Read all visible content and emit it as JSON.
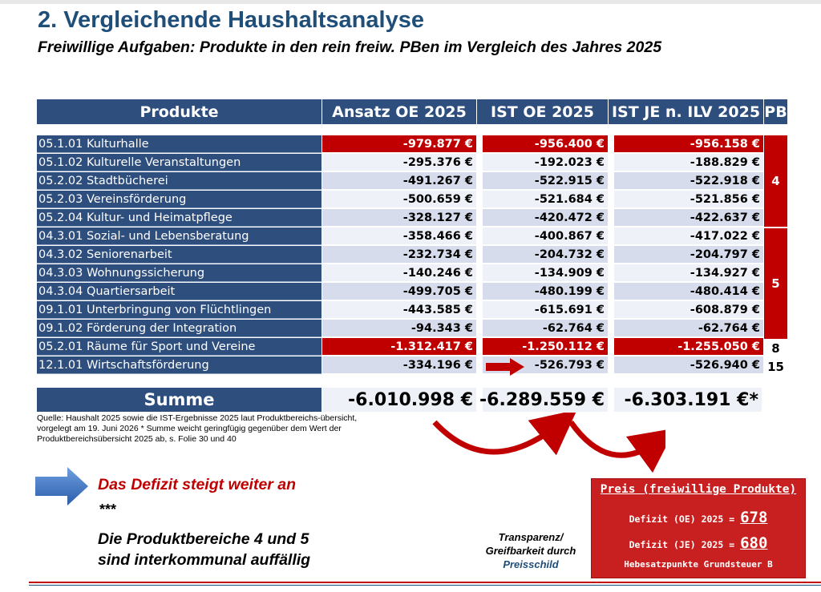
{
  "title": "2. Vergleichende Haushaltsanalyse",
  "subtitle": "Freiwillige Aufgaben: Produkte in den rein freiw. PBen im Vergleich des Jahres 2025",
  "table": {
    "headers": [
      "Produkte",
      "Ansatz OE 2025",
      "IST OE 2025",
      "IST JE n. ILV 2025",
      "PB"
    ],
    "rows": [
      {
        "name": "05.1.01 Kulturhalle",
        "ansatz": "-979.877 €",
        "ist_oe": "-956.400 €",
        "ist_je": "-956.158 €",
        "highlight": true
      },
      {
        "name": "05.1.02 Kulturelle Veranstaltungen",
        "ansatz": "-295.376 €",
        "ist_oe": "-192.023 €",
        "ist_je": "-188.829 €"
      },
      {
        "name": "05.2.02 Stadtbücherei",
        "ansatz": "-491.267 €",
        "ist_oe": "-522.915 €",
        "ist_je": "-522.918 €"
      },
      {
        "name": "05.2.03 Vereinsförderung",
        "ansatz": "-500.659 €",
        "ist_oe": "-521.684 €",
        "ist_je": "-521.856 €"
      },
      {
        "name": "05.2.04 Kultur- und Heimatpflege",
        "ansatz": "-328.127 €",
        "ist_oe": "-420.472 €",
        "ist_je": "-422.637 €"
      },
      {
        "name": "04.3.01 Sozial- und Lebensberatung",
        "ansatz": "-358.466 €",
        "ist_oe": "-400.867 €",
        "ist_je": "-417.022 €"
      },
      {
        "name": "04.3.02 Seniorenarbeit",
        "ansatz": "-232.734 €",
        "ist_oe": "-204.732 €",
        "ist_je": "-204.797 €"
      },
      {
        "name": "04.3.03 Wohnungssicherung",
        "ansatz": "-140.246 €",
        "ist_oe": "-134.909 €",
        "ist_je": "-134.927 €"
      },
      {
        "name": "04.3.04 Quartiersarbeit",
        "ansatz": "-499.705 €",
        "ist_oe": "-480.199 €",
        "ist_je": "-480.414 €"
      },
      {
        "name": "09.1.01 Unterbringung von Flüchtlingen",
        "ansatz": "-443.585 €",
        "ist_oe": "-615.691 €",
        "ist_je": "-608.879 €"
      },
      {
        "name": "09.1.02 Förderung der Integration",
        "ansatz": "-94.343 €",
        "ist_oe": "-62.764 €",
        "ist_je": "-62.764 €"
      },
      {
        "name": "05.2.01 Räume für Sport und Vereine",
        "ansatz": "-1.312.417 €",
        "ist_oe": "-1.250.112 €",
        "ist_je": "-1.255.050 €",
        "highlight": true
      },
      {
        "name": "12.1.01 Wirtschaftsförderung",
        "ansatz": "-334.196 €",
        "ist_oe": "-526.793 €",
        "ist_je": "-526.940 €"
      }
    ],
    "pb_groups": [
      "4",
      "5",
      "8",
      "15"
    ],
    "sum_label": "Summe",
    "sum_ansatz": "-6.010.998 €",
    "sum_ist_oe": "-6.289.559 €",
    "sum_ist_je": "-6.303.191 €*"
  },
  "source_note": "Quelle: Haushalt 2025 sowie die IST-Ergebnisse 2025 laut Produktbereichs-übersicht, vorgelegt am 19. Juni 2026    * Summe weicht geringfügig gegenüber dem Wert der Produktbereichsübersicht 2025 ab, s. Folie 30 und 40",
  "statement_red": "Das Defizit steigt weiter an",
  "stars": "***",
  "conclusion_line1": "Die Produktbereiche 4 und 5",
  "conclusion_line2": "sind interkommunal auffällig",
  "transparency_line1": "Transparenz/",
  "transparency_line2": "Greifbarkeit durch",
  "transparency_line3": "Preisschild",
  "price_box": {
    "title": "Preis (freiwillige Produkte)",
    "oe_label": "Defizit (OE) 2025 =",
    "oe_value": "678",
    "je_label": "Defizit (JE) 2025 =",
    "je_value": "680",
    "footer": "Hebesatzpunkte Grundsteuer B"
  },
  "colors": {
    "navy": "#2e4e7e",
    "red": "#c00000",
    "title_blue": "#1f4e79"
  }
}
